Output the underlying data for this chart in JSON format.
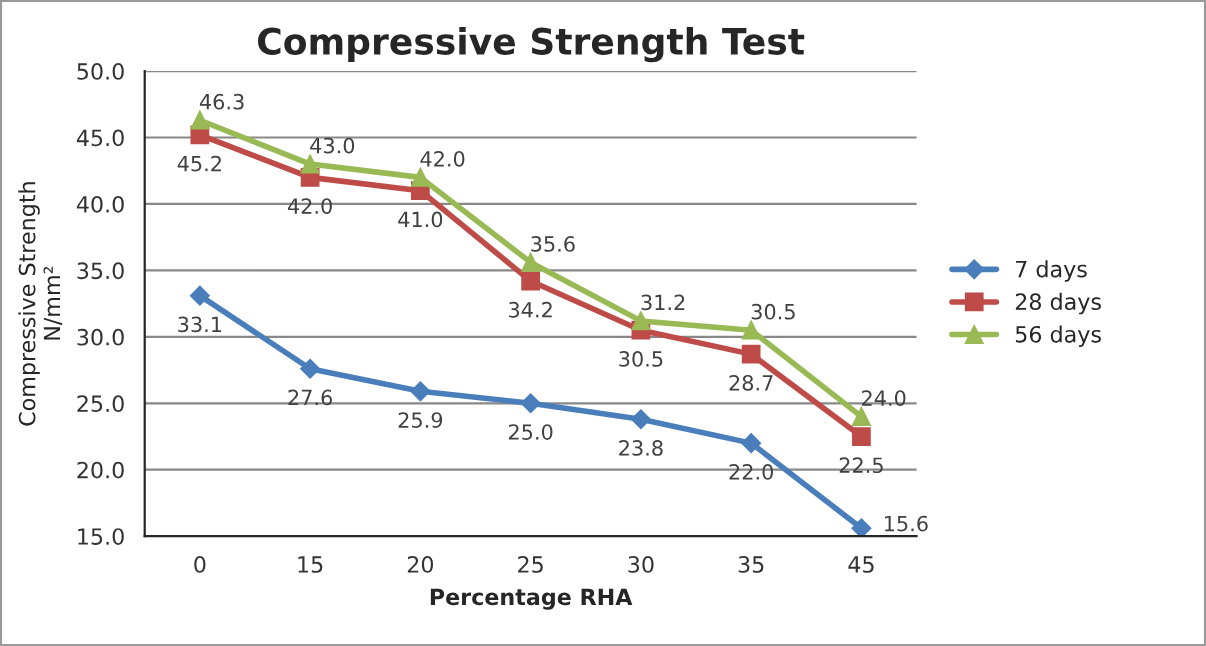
{
  "chart_data": {
    "type": "line",
    "title": "Compressive Strength Test",
    "xlabel": "Percentage RHA",
    "ylabel": "Compressive Strength\nN/mm²",
    "categories": [
      "0",
      "15",
      "20",
      "25",
      "30",
      "35",
      "45"
    ],
    "series": [
      {
        "name": "7 days",
        "color": "#4a7ebb",
        "marker": "diamond",
        "values": [
          33.1,
          27.6,
          25.9,
          25.0,
          23.8,
          22.0,
          15.6
        ],
        "value_labels": [
          "33.1",
          "27.6",
          "25.9",
          "25.0",
          "23.8",
          "22.0",
          "15.6"
        ]
      },
      {
        "name": "28 days",
        "color": "#be4b48",
        "marker": "square",
        "values": [
          45.2,
          42.0,
          41.0,
          34.2,
          30.5,
          28.7,
          22.5
        ],
        "value_labels": [
          "45.2",
          "42.0",
          "41.0",
          "34.2",
          "30.5",
          "28.7",
          "22.5"
        ]
      },
      {
        "name": "56 days",
        "color": "#98b954",
        "marker": "triangle",
        "values": [
          46.3,
          43.0,
          42.0,
          35.6,
          31.2,
          30.5,
          24.0
        ],
        "value_labels": [
          "46.3",
          "43.0",
          "42.0",
          "35.6",
          "31.2",
          "30.5",
          "24.0"
        ]
      }
    ],
    "ylim": [
      15,
      50
    ],
    "yticks": [
      {
        "value": 15,
        "label": "15.0"
      },
      {
        "value": 20,
        "label": "20.0"
      },
      {
        "value": 25,
        "label": "25.0"
      },
      {
        "value": 30,
        "label": "30.0"
      },
      {
        "value": 35,
        "label": "35.0"
      },
      {
        "value": 40,
        "label": "40.0"
      },
      {
        "value": 45,
        "label": "45.0"
      },
      {
        "value": 50,
        "label": "50.0"
      }
    ],
    "grid": "y",
    "legend": "right",
    "line_style": "solid"
  }
}
